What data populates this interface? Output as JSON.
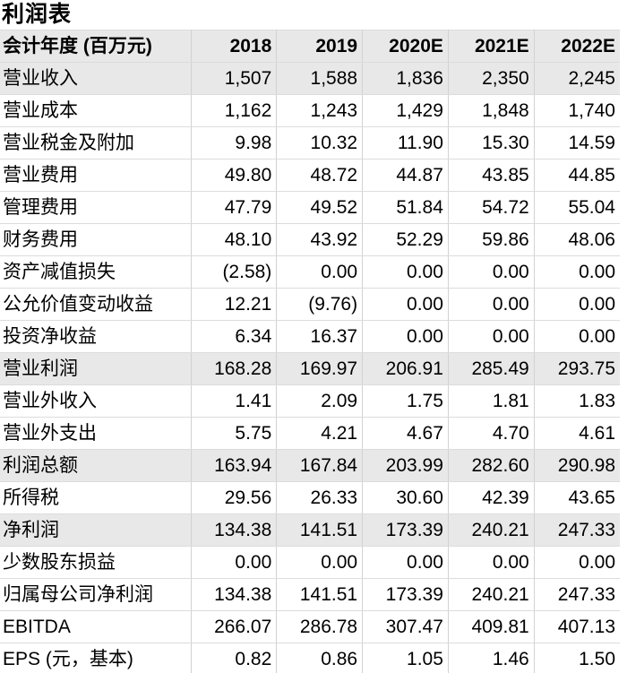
{
  "page_title": "利润表",
  "colors": {
    "header_bg": "#e8e8e8",
    "shaded_row_bg": "#e8e8e8",
    "grid_line_vertical": "#d2d2d2",
    "grid_line_horizontal": "#dcdcdc",
    "text": "#000000"
  },
  "table": {
    "columns": [
      "会计年度 (百万元)",
      "2018",
      "2019",
      "2020E",
      "2021E",
      "2022E"
    ],
    "rows": [
      {
        "label": "营业收入",
        "values": [
          "1,507",
          "1,588",
          "1,836",
          "2,350",
          "2,245"
        ],
        "shaded": true
      },
      {
        "label": "营业成本",
        "values": [
          "1,162",
          "1,243",
          "1,429",
          "1,848",
          "1,740"
        ],
        "shaded": false
      },
      {
        "label": "营业税金及附加",
        "values": [
          "9.98",
          "10.32",
          "11.90",
          "15.30",
          "14.59"
        ],
        "shaded": false
      },
      {
        "label": "营业费用",
        "values": [
          "49.80",
          "48.72",
          "44.87",
          "43.85",
          "44.85"
        ],
        "shaded": false
      },
      {
        "label": "管理费用",
        "values": [
          "47.79",
          "49.52",
          "51.84",
          "54.72",
          "55.04"
        ],
        "shaded": false
      },
      {
        "label": "财务费用",
        "values": [
          "48.10",
          "43.92",
          "52.29",
          "59.86",
          "48.06"
        ],
        "shaded": false
      },
      {
        "label": "资产减值损失",
        "values": [
          "(2.58)",
          "0.00",
          "0.00",
          "0.00",
          "0.00"
        ],
        "shaded": false
      },
      {
        "label": "公允价值变动收益",
        "values": [
          "12.21",
          "(9.76)",
          "0.00",
          "0.00",
          "0.00"
        ],
        "shaded": false
      },
      {
        "label": "投资净收益",
        "values": [
          "6.34",
          "16.37",
          "0.00",
          "0.00",
          "0.00"
        ],
        "shaded": false
      },
      {
        "label": "营业利润",
        "values": [
          "168.28",
          "169.97",
          "206.91",
          "285.49",
          "293.75"
        ],
        "shaded": true
      },
      {
        "label": "营业外收入",
        "values": [
          "1.41",
          "2.09",
          "1.75",
          "1.81",
          "1.83"
        ],
        "shaded": false
      },
      {
        "label": "营业外支出",
        "values": [
          "5.75",
          "4.21",
          "4.67",
          "4.70",
          "4.61"
        ],
        "shaded": false
      },
      {
        "label": "利润总额",
        "values": [
          "163.94",
          "167.84",
          "203.99",
          "282.60",
          "290.98"
        ],
        "shaded": true
      },
      {
        "label": "所得税",
        "values": [
          "29.56",
          "26.33",
          "30.60",
          "42.39",
          "43.65"
        ],
        "shaded": false
      },
      {
        "label": "净利润",
        "values": [
          "134.38",
          "141.51",
          "173.39",
          "240.21",
          "247.33"
        ],
        "shaded": true
      },
      {
        "label": "少数股东损益",
        "values": [
          "0.00",
          "0.00",
          "0.00",
          "0.00",
          "0.00"
        ],
        "shaded": false
      },
      {
        "label": "归属母公司净利润",
        "values": [
          "134.38",
          "141.51",
          "173.39",
          "240.21",
          "247.33"
        ],
        "shaded": false
      },
      {
        "label": "EBITDA",
        "values": [
          "266.07",
          "286.78",
          "307.47",
          "409.81",
          "407.13"
        ],
        "shaded": false
      },
      {
        "label": "EPS (元，基本)",
        "values": [
          "0.82",
          "0.86",
          "1.05",
          "1.46",
          "1.50"
        ],
        "shaded": false
      }
    ]
  }
}
